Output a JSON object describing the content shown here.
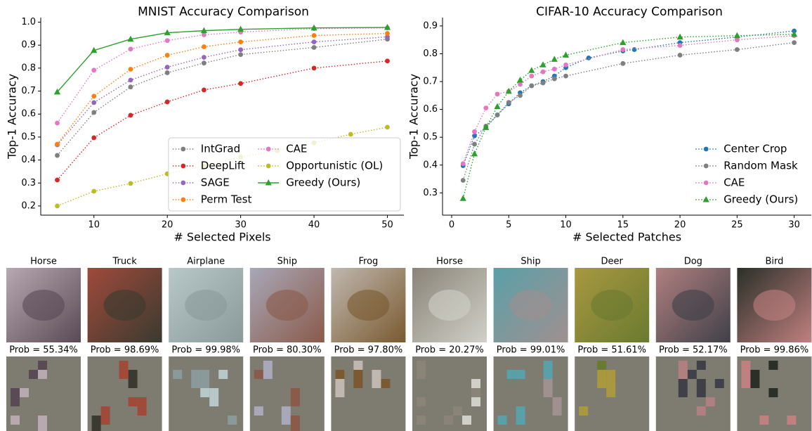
{
  "chart_data": [
    {
      "type": "line",
      "title": "MNIST Accuracy Comparison",
      "xlabel": "# Selected Pixels",
      "ylabel": "Top-1 Accuracy",
      "xlim": [
        2.75,
        52.25
      ],
      "ylim": [
        0.16,
        1.02
      ],
      "xticks": [
        10,
        20,
        30,
        40,
        50
      ],
      "yticks": [
        0.2,
        0.3,
        0.4,
        0.5,
        0.6,
        0.7,
        0.8,
        0.9,
        {
          "value": 1.0,
          "label": "1.0"
        }
      ],
      "legend": {
        "loc": "lower right",
        "ncol": 2,
        "frame": true
      },
      "series": [
        {
          "name": "IntGrad",
          "color": "#7f7f7f",
          "marker": "circle",
          "linestyle": "dotted",
          "x": [
            5,
            10,
            15,
            20,
            25,
            30,
            40,
            50
          ],
          "values": [
            0.42,
            0.607,
            0.718,
            0.78,
            0.822,
            0.859,
            0.89,
            0.926
          ]
        },
        {
          "name": "DeepLift",
          "color": "#d62728",
          "marker": "circle",
          "linestyle": "dotted",
          "x": [
            5,
            10,
            15,
            20,
            25,
            30,
            40,
            50
          ],
          "values": [
            0.313,
            0.497,
            0.595,
            0.653,
            0.705,
            0.733,
            0.8,
            0.831
          ]
        },
        {
          "name": "SAGE",
          "color": "#9467bd",
          "marker": "circle",
          "linestyle": "dotted",
          "x": [
            5,
            10,
            15,
            20,
            25,
            30,
            40,
            50
          ],
          "values": [
            0.466,
            0.65,
            0.748,
            0.804,
            0.847,
            0.88,
            0.914,
            0.936
          ]
        },
        {
          "name": "Perm Test",
          "color": "#ff7f0e",
          "marker": "circle",
          "linestyle": "dotted",
          "x": [
            5,
            10,
            15,
            20,
            25,
            30,
            40,
            50
          ],
          "values": [
            0.469,
            0.678,
            0.795,
            0.856,
            0.893,
            0.914,
            0.942,
            0.951
          ]
        },
        {
          "name": "CAE",
          "color": "#e377c2",
          "marker": "circle",
          "linestyle": "dotted",
          "x": [
            5,
            10,
            15,
            20,
            25,
            30,
            40,
            50
          ],
          "values": [
            0.561,
            0.791,
            0.883,
            0.92,
            0.945,
            0.957,
            0.972,
            0.975
          ]
        },
        {
          "name": "Opportunistic (OL)",
          "color": "#bcbd22",
          "marker": "circle",
          "linestyle": "dotted",
          "x": [
            5,
            10,
            15,
            20,
            25,
            30,
            35,
            40,
            45,
            50
          ],
          "values": [
            0.2,
            0.264,
            0.298,
            0.34,
            0.375,
            0.414,
            0.44,
            0.475,
            0.512,
            0.543
          ]
        },
        {
          "name": "Greedy (Ours)",
          "color": "#2ca02c",
          "marker": "triangle",
          "linestyle": "solid",
          "x": [
            5,
            10,
            15,
            20,
            25,
            30,
            40,
            50
          ],
          "values": [
            0.696,
            0.877,
            0.926,
            0.954,
            0.963,
            0.969,
            0.975,
            0.977
          ]
        }
      ]
    },
    {
      "type": "line",
      "title": "CIFAR-10 Accuracy Comparison",
      "xlabel": "# Selected Patches",
      "ylabel": "Top-1 Accuracy",
      "xlim": [
        -0.8,
        31.5
      ],
      "ylim": [
        0.22,
        0.93
      ],
      "xticks": [
        0,
        5,
        10,
        15,
        20,
        25,
        30
      ],
      "yticks": [
        0.3,
        0.4,
        0.5,
        0.6,
        0.7,
        0.8,
        0.9
      ],
      "legend": {
        "loc": "lower right",
        "ncol": 1,
        "frame": false
      },
      "series": [
        {
          "name": "Center Crop",
          "color": "#1f77b4",
          "marker": "circle",
          "linestyle": "dotted",
          "x": [
            1,
            2,
            3,
            4,
            5,
            6,
            7,
            8,
            9,
            10,
            12,
            15,
            16,
            20,
            25,
            30
          ],
          "values": [
            0.398,
            0.505,
            0.535,
            0.58,
            0.62,
            0.66,
            0.685,
            0.7,
            0.72,
            0.75,
            0.785,
            0.81,
            0.815,
            0.84,
            0.86,
            0.882
          ]
        },
        {
          "name": "Random Mask",
          "color": "#7f7f7f",
          "marker": "circle",
          "linestyle": "dotted",
          "x": [
            1,
            2,
            3,
            4,
            5,
            6,
            7,
            8,
            9,
            10,
            15,
            20,
            25,
            30
          ],
          "values": [
            0.345,
            0.475,
            0.54,
            0.58,
            0.625,
            0.65,
            0.685,
            0.695,
            0.71,
            0.72,
            0.765,
            0.795,
            0.815,
            0.84
          ]
        },
        {
          "name": "CAE",
          "color": "#e377c2",
          "marker": "circle",
          "linestyle": "dotted",
          "x": [
            1,
            2,
            3,
            4,
            5,
            6,
            7,
            8,
            9,
            10,
            15,
            20,
            25,
            30
          ],
          "values": [
            0.405,
            0.52,
            0.605,
            0.655,
            0.665,
            0.69,
            0.72,
            0.735,
            0.745,
            0.76,
            0.815,
            0.83,
            0.85,
            0.865
          ]
        },
        {
          "name": "Greedy (Ours)",
          "color": "#2ca02c",
          "marker": "triangle",
          "linestyle": "dotted",
          "x": [
            1,
            2,
            3,
            4,
            5,
            6,
            7,
            8,
            9,
            10,
            15,
            20,
            25,
            30
          ],
          "values": [
            0.28,
            0.44,
            0.535,
            0.61,
            0.665,
            0.705,
            0.74,
            0.76,
            0.78,
            0.795,
            0.84,
            0.86,
            0.865,
            0.87
          ]
        }
      ]
    }
  ],
  "image_grid": [
    {
      "label": "Horse",
      "prob": "Prob = 55.34%"
    },
    {
      "label": "Truck",
      "prob": "Prob = 98.69%"
    },
    {
      "label": "Airplane",
      "prob": "Prob = 99.98%"
    },
    {
      "label": "Ship",
      "prob": "Prob = 80.30%"
    },
    {
      "label": "Frog",
      "prob": "Prob = 97.80%"
    },
    {
      "label": "Horse",
      "prob": "Prob = 20.27%"
    },
    {
      "label": "Ship",
      "prob": "Prob = 99.01%"
    },
    {
      "label": "Deer",
      "prob": "Prob = 51.61%"
    },
    {
      "label": "Dog",
      "prob": "Prob = 52.17%"
    },
    {
      "label": "Bird",
      "prob": "Prob = 99.86%"
    }
  ]
}
